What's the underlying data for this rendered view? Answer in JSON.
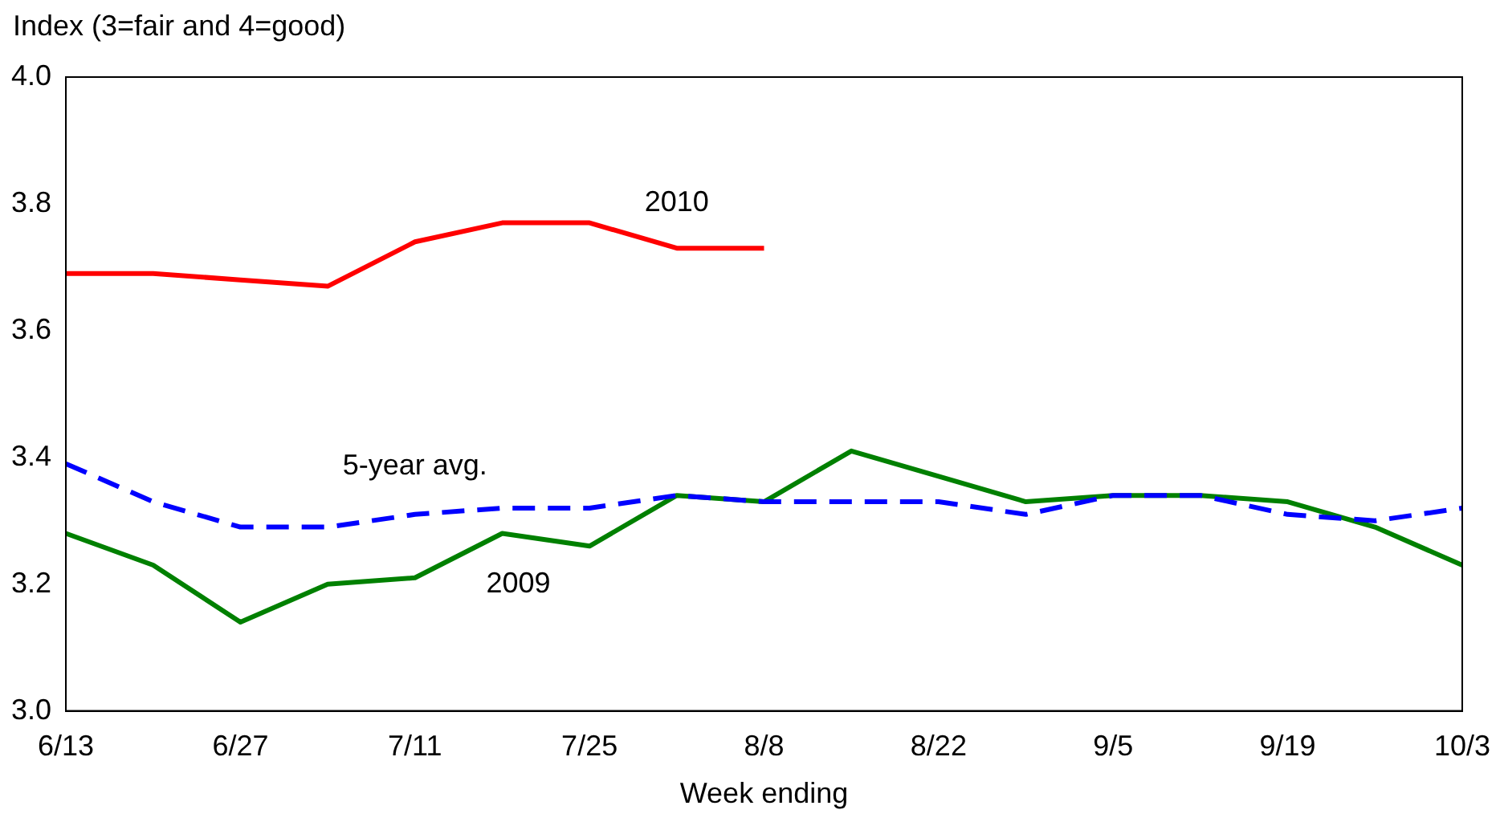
{
  "chart_data": {
    "type": "line",
    "ylabel": "Index (3=fair and 4=good)",
    "xlabel": "Week ending",
    "categories": [
      "6/13",
      null,
      "6/27",
      null,
      "7/11",
      null,
      "7/25",
      null,
      "8/8",
      null,
      "8/22",
      null,
      "9/5",
      null,
      "9/19",
      null,
      "10/3"
    ],
    "series": [
      {
        "name": "2010",
        "color": "#ff0000",
        "line_style": "solid",
        "values": [
          3.69,
          3.69,
          3.68,
          3.67,
          3.74,
          3.77,
          3.77,
          3.73,
          3.73,
          null,
          null,
          null,
          null,
          null,
          null,
          null,
          null
        ]
      },
      {
        "name": "5-year avg.",
        "color": "#0000ff",
        "line_style": "dashed",
        "values": [
          3.39,
          3.33,
          3.29,
          3.29,
          3.31,
          3.32,
          3.32,
          3.34,
          3.33,
          3.33,
          3.33,
          3.31,
          3.34,
          3.34,
          3.31,
          3.3,
          3.32
        ]
      },
      {
        "name": "2009",
        "color": "#008000",
        "line_style": "solid",
        "values": [
          3.28,
          3.23,
          3.14,
          3.2,
          3.21,
          3.28,
          3.26,
          3.34,
          3.33,
          3.41,
          3.37,
          3.33,
          3.34,
          3.34,
          3.33,
          3.29,
          3.23
        ]
      }
    ],
    "ylim": [
      3.0,
      4.0
    ],
    "yticks": [
      {
        "value": 3.0,
        "label": "3.0"
      },
      3.2,
      3.4,
      3.6,
      3.8,
      {
        "value": 4.0,
        "label": "4.0"
      }
    ],
    "grid": false,
    "legend": false,
    "marker": "none"
  }
}
